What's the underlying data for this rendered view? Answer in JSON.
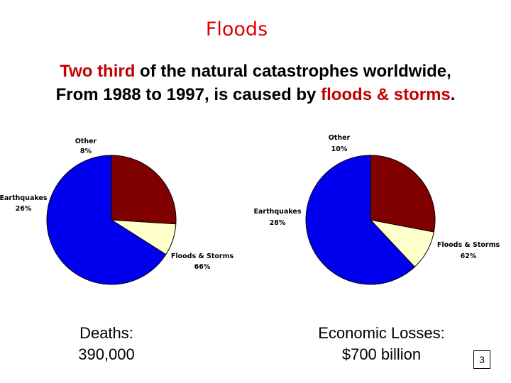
{
  "slide": {
    "title": "Floods",
    "subtitle_line1": {
      "highlight": "Two third",
      "rest": " of the natural catastrophes worldwide,"
    },
    "subtitle_line2": {
      "text": "From 1988 to 1997, is caused by ",
      "highlight": "floods & storms",
      "end": "."
    },
    "caption_left_1": "Deaths:",
    "caption_left_2": "390,000",
    "caption_right_1": "Economic Losses:",
    "caption_right_2": "$700 billion",
    "page_number": "3"
  },
  "colors": {
    "floods": "#0000ee",
    "earthquakes": "#800000",
    "other": "#ffffcc",
    "highlight": "#c00000"
  },
  "chart_data": [
    {
      "type": "pie",
      "slices": [
        {
          "label": "Floods & Storms",
          "value_label": "66%",
          "value": 66
        },
        {
          "label": "Earthquakes",
          "value_label": "26%",
          "value": 26
        },
        {
          "label": "Other",
          "value_label": "8%",
          "value": 8
        }
      ]
    },
    {
      "type": "pie",
      "slices": [
        {
          "label": "Floods & Storms",
          "value_label": "62%",
          "value": 62
        },
        {
          "label": "Earthquakes",
          "value_label": "28%",
          "value": 28
        },
        {
          "label": "Other",
          "value_label": "10%",
          "value": 10
        }
      ]
    }
  ]
}
